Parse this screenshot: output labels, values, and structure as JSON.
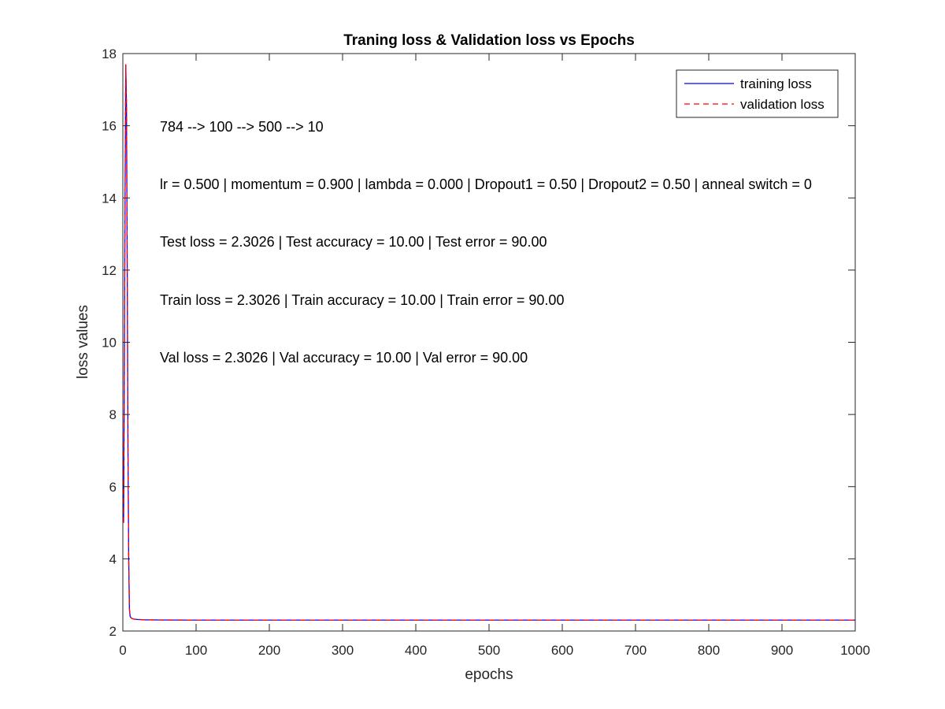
{
  "chart_data": {
    "type": "line",
    "title": "Traning loss & Validation loss vs Epochs",
    "xlabel": "epochs",
    "ylabel": "loss values",
    "xlim": [
      0,
      1000
    ],
    "ylim": [
      2,
      18
    ],
    "xticks": [
      0,
      100,
      200,
      300,
      400,
      500,
      600,
      700,
      800,
      900,
      1000
    ],
    "yticks": [
      2,
      4,
      6,
      8,
      10,
      12,
      14,
      16,
      18
    ],
    "grid": false,
    "legend_position": "top-right",
    "annotations": [
      "784 --> 100 --> 500 --> 10",
      "lr = 0.500 | momentum = 0.900 | lambda = 0.000 | Dropout1 = 0.50 | Dropout2 = 0.50 | anneal switch = 0",
      "Test loss = 2.3026 | Test accuracy = 10.00 | Test error = 90.00",
      "Train loss = 2.3026 | Train accuracy = 10.00 | Train error = 90.00",
      "Val loss = 2.3026 | Val accuracy = 10.00 | Val error = 90.00"
    ],
    "series": [
      {
        "name": "training loss",
        "color": "#0000ff",
        "style": "solid",
        "x": [
          1,
          2,
          3,
          4,
          5,
          6,
          7,
          8,
          9,
          10,
          12,
          15,
          20,
          30,
          50,
          100,
          200,
          300,
          400,
          500,
          600,
          700,
          800,
          900,
          1000
        ],
        "y": [
          5.0,
          9.0,
          14.0,
          17.7,
          16.5,
          12.0,
          7.0,
          4.0,
          2.6,
          2.4,
          2.35,
          2.33,
          2.32,
          2.31,
          2.305,
          2.303,
          2.3026,
          2.3026,
          2.3026,
          2.3026,
          2.3026,
          2.3026,
          2.3026,
          2.3026,
          2.3026
        ]
      },
      {
        "name": "validation loss",
        "color": "#ff0000",
        "style": "dashed",
        "x": [
          1,
          2,
          3,
          4,
          5,
          6,
          7,
          8,
          9,
          10,
          12,
          15,
          20,
          30,
          50,
          100,
          200,
          300,
          400,
          500,
          600,
          700,
          800,
          900,
          1000
        ],
        "y": [
          5.0,
          9.0,
          14.0,
          17.7,
          16.5,
          12.0,
          7.0,
          4.0,
          2.6,
          2.4,
          2.35,
          2.33,
          2.32,
          2.31,
          2.305,
          2.303,
          2.3026,
          2.3026,
          2.3026,
          2.3026,
          2.3026,
          2.3026,
          2.3026,
          2.3026,
          2.3026
        ]
      }
    ]
  }
}
